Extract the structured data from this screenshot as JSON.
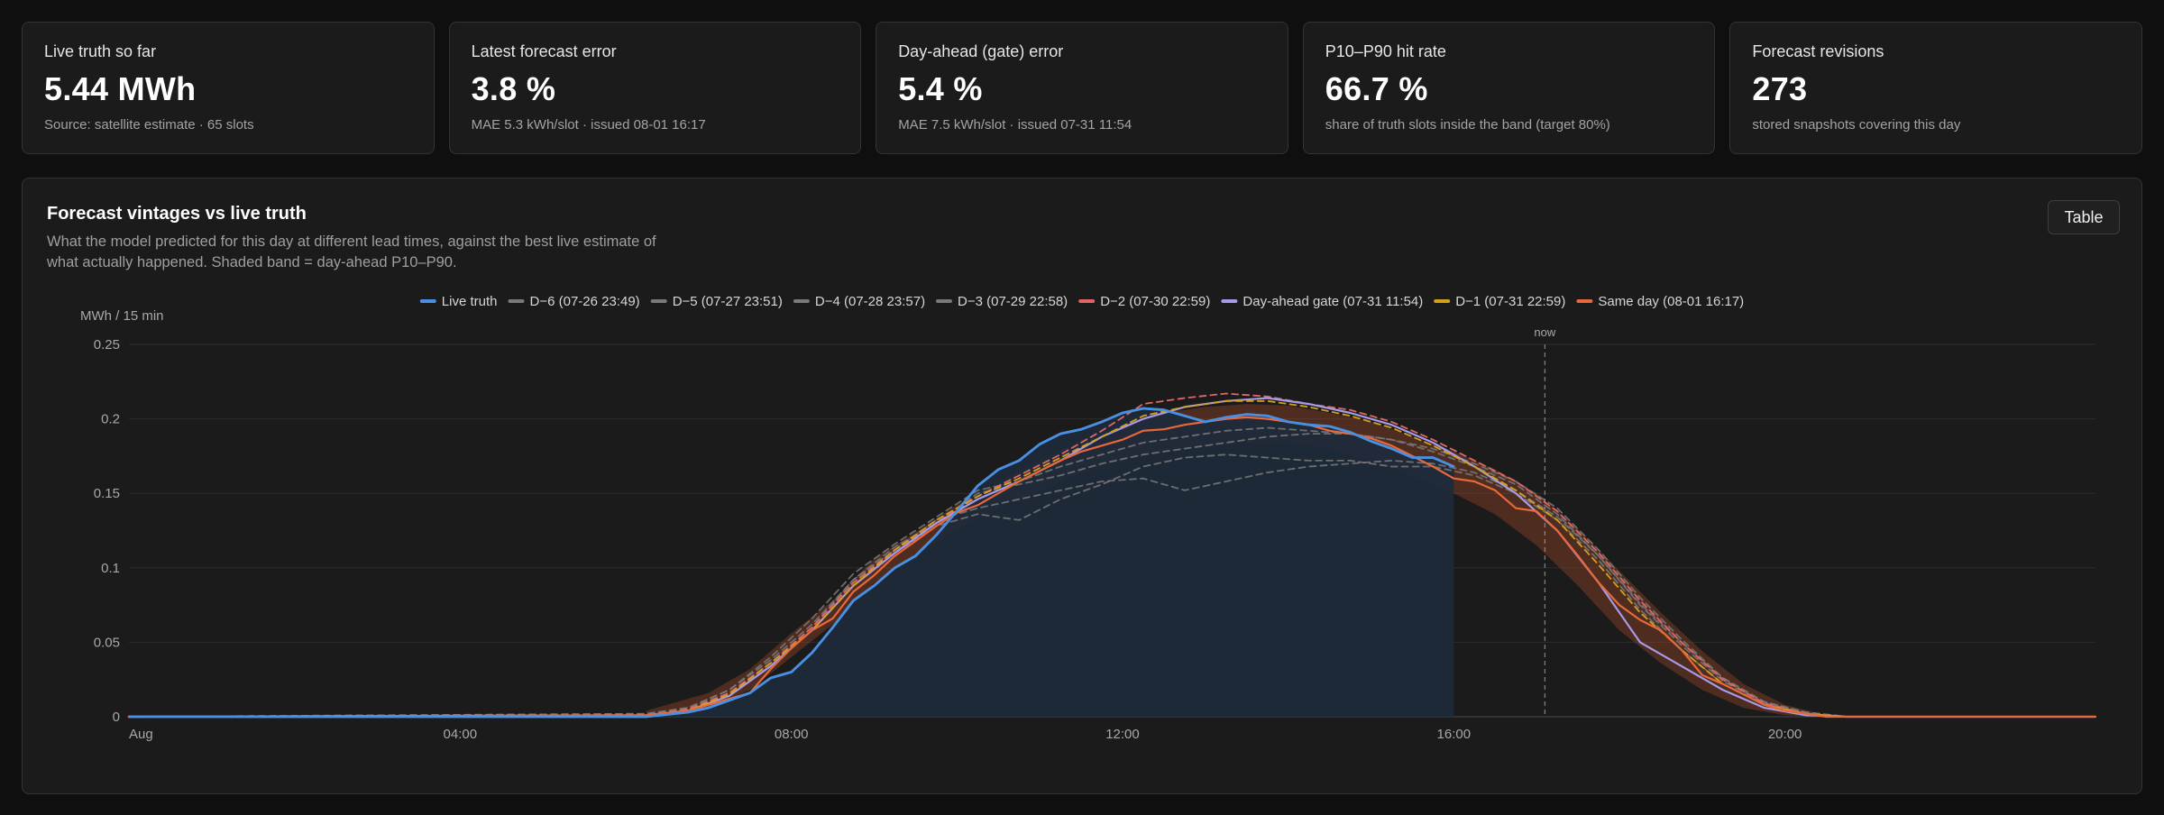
{
  "kpis": [
    {
      "label": "Live truth so far",
      "value": "5.44 MWh",
      "sub": "Source: satellite estimate · 65 slots"
    },
    {
      "label": "Latest forecast error",
      "value": "3.8 %",
      "sub": "MAE 5.3 kWh/slot · issued 08-01 16:17"
    },
    {
      "label": "Day-ahead (gate) error",
      "value": "5.4 %",
      "sub": "MAE 7.5 kWh/slot · issued 07-31 11:54"
    },
    {
      "label": "P10–P90 hit rate",
      "value": "66.7 %",
      "sub": "share of truth slots inside the band (target 80%)"
    },
    {
      "label": "Forecast revisions",
      "value": "273",
      "sub": "stored snapshots covering this day"
    }
  ],
  "panel": {
    "title": "Forecast vintages vs live truth",
    "description": "What the model predicted for this day at different lead times, against the best live estimate of what actually happened. Shaded band = day-ahead P10–P90.",
    "table_button": "Table"
  },
  "colors": {
    "truth": "#4a90e2",
    "old_vintage": "#7a7a7a",
    "d2": "#e06666",
    "gate": "#a79ae8",
    "d1": "#d4a017",
    "same_day": "#e8683a",
    "band": "#b0502a",
    "truth_fill": "#1f2a3a"
  },
  "chart_data": {
    "type": "line",
    "ylabel": "MWh / 15 min",
    "ylim": [
      0,
      0.25
    ],
    "yticks": [
      0,
      0.05,
      0.1,
      0.15,
      0.2,
      0.25
    ],
    "xlim": [
      0,
      23.75
    ],
    "xticks": [
      {
        "x": 0,
        "label": "Aug"
      },
      {
        "x": 4,
        "label": "04:00"
      },
      {
        "x": 8,
        "label": "08:00"
      },
      {
        "x": 12,
        "label": "12:00"
      },
      {
        "x": 16,
        "label": "16:00"
      },
      {
        "x": 20,
        "label": "20:00"
      }
    ],
    "now": {
      "x": 17.1,
      "label": "now"
    },
    "legend_placement": "top-center",
    "grid": true,
    "band": {
      "name": "day-ahead P10–P90",
      "x": [
        6.25,
        7,
        7.5,
        8,
        8.5,
        9,
        9.5,
        10,
        10.5,
        11,
        11.5,
        12,
        12.5,
        13,
        13.5,
        14,
        14.5,
        15,
        15.5,
        16,
        16.5,
        17,
        17.5,
        18,
        18.5,
        19,
        19.5,
        20,
        20.5
      ],
      "low": [
        0,
        0.006,
        0.018,
        0.04,
        0.062,
        0.09,
        0.108,
        0.126,
        0.14,
        0.152,
        0.164,
        0.172,
        0.178,
        0.182,
        0.184,
        0.184,
        0.18,
        0.172,
        0.162,
        0.15,
        0.136,
        0.115,
        0.088,
        0.058,
        0.036,
        0.018,
        0.006,
        0.001,
        0
      ],
      "high": [
        0.004,
        0.016,
        0.032,
        0.056,
        0.078,
        0.106,
        0.124,
        0.142,
        0.158,
        0.172,
        0.186,
        0.196,
        0.204,
        0.208,
        0.21,
        0.209,
        0.204,
        0.198,
        0.188,
        0.178,
        0.166,
        0.15,
        0.126,
        0.098,
        0.07,
        0.044,
        0.022,
        0.008,
        0.001
      ]
    },
    "series": [
      {
        "name": "Live truth",
        "color_key": "truth",
        "dashed": false,
        "fill": true,
        "x": [
          0,
          6.25,
          6.75,
          7,
          7.5,
          7.75,
          8,
          8.25,
          8.5,
          8.75,
          9,
          9.25,
          9.5,
          9.75,
          10,
          10.25,
          10.5,
          10.75,
          11,
          11.25,
          11.5,
          11.75,
          12,
          12.25,
          12.5,
          12.75,
          13,
          13.25,
          13.5,
          13.75,
          14,
          14.25,
          14.5,
          14.75,
          15,
          15.25,
          15.5,
          15.75,
          16
        ],
        "y": [
          0,
          0,
          0.003,
          0.006,
          0.016,
          0.026,
          0.03,
          0.043,
          0.06,
          0.078,
          0.088,
          0.1,
          0.108,
          0.122,
          0.138,
          0.155,
          0.166,
          0.172,
          0.183,
          0.19,
          0.193,
          0.198,
          0.204,
          0.207,
          0.206,
          0.202,
          0.198,
          0.201,
          0.203,
          0.202,
          0.198,
          0.196,
          0.195,
          0.191,
          0.185,
          0.18,
          0.174,
          0.174,
          0.168
        ]
      },
      {
        "name": "D−6 (07-26 23:49)",
        "color_key": "old_vintage",
        "dashed": true,
        "x": [
          0,
          6.25,
          6.75,
          7.25,
          7.75,
          8.25,
          8.75,
          9.25,
          9.75,
          10.25,
          10.75,
          11.25,
          11.75,
          12.25,
          12.75,
          13.25,
          13.75,
          14.25,
          14.75,
          15.25,
          15.75,
          16.25,
          16.75,
          17.25,
          17.75,
          18.25,
          18.75,
          19.25,
          19.75,
          20.25,
          20.75,
          23.75
        ],
        "y": [
          0,
          0.001,
          0.004,
          0.014,
          0.034,
          0.058,
          0.088,
          0.11,
          0.128,
          0.136,
          0.132,
          0.146,
          0.156,
          0.168,
          0.174,
          0.176,
          0.174,
          0.172,
          0.172,
          0.168,
          0.168,
          0.162,
          0.15,
          0.132,
          0.105,
          0.072,
          0.045,
          0.022,
          0.008,
          0.002,
          0,
          0
        ]
      },
      {
        "name": "D−5 (07-27 23:51)",
        "color_key": "old_vintage",
        "dashed": true,
        "x": [
          0,
          6.25,
          6.75,
          7.25,
          7.75,
          8.25,
          8.75,
          9.25,
          9.75,
          10.25,
          10.75,
          11.25,
          11.75,
          12.25,
          12.75,
          13.25,
          13.75,
          14.25,
          14.75,
          15.25,
          15.75,
          16.25,
          16.75,
          17.25,
          17.75,
          18.25,
          18.75,
          19.25,
          19.75,
          20.25,
          20.75,
          23.75
        ],
        "y": [
          0,
          0.002,
          0.006,
          0.018,
          0.038,
          0.062,
          0.092,
          0.112,
          0.132,
          0.14,
          0.146,
          0.152,
          0.158,
          0.16,
          0.152,
          0.158,
          0.164,
          0.168,
          0.17,
          0.172,
          0.17,
          0.164,
          0.152,
          0.134,
          0.108,
          0.075,
          0.048,
          0.024,
          0.009,
          0.002,
          0,
          0
        ]
      },
      {
        "name": "D−4 (07-28 23:57)",
        "color_key": "old_vintage",
        "dashed": true,
        "x": [
          0,
          6.25,
          6.75,
          7.25,
          7.75,
          8.25,
          8.75,
          9.25,
          9.75,
          10.25,
          10.75,
          11.25,
          11.75,
          12.25,
          12.75,
          13.25,
          13.75,
          14.25,
          14.75,
          15.25,
          15.75,
          16.25,
          16.75,
          17.25,
          17.75,
          18.25,
          18.75,
          19.25,
          19.75,
          20.25,
          20.75,
          23.75
        ],
        "y": [
          0,
          0.001,
          0.005,
          0.016,
          0.036,
          0.06,
          0.092,
          0.114,
          0.13,
          0.15,
          0.156,
          0.162,
          0.17,
          0.176,
          0.18,
          0.184,
          0.188,
          0.19,
          0.19,
          0.186,
          0.18,
          0.17,
          0.158,
          0.14,
          0.112,
          0.08,
          0.052,
          0.026,
          0.01,
          0.003,
          0,
          0
        ]
      },
      {
        "name": "D−3 (07-29 22:58)",
        "color_key": "old_vintage",
        "dashed": true,
        "x": [
          0,
          6.25,
          6.75,
          7.25,
          7.75,
          8.25,
          8.75,
          9.25,
          9.75,
          10.25,
          10.75,
          11.25,
          11.75,
          12.25,
          12.75,
          13.25,
          13.75,
          14.25,
          14.75,
          15.25,
          15.75,
          16.25,
          16.75,
          17.25,
          17.75,
          18.25,
          18.75,
          19.25,
          19.75,
          20.25,
          20.75,
          23.75
        ],
        "y": [
          0,
          0.002,
          0.006,
          0.018,
          0.04,
          0.066,
          0.096,
          0.116,
          0.134,
          0.152,
          0.158,
          0.168,
          0.176,
          0.184,
          0.188,
          0.192,
          0.194,
          0.192,
          0.19,
          0.186,
          0.178,
          0.168,
          0.156,
          0.136,
          0.108,
          0.076,
          0.05,
          0.026,
          0.01,
          0.003,
          0,
          0
        ]
      },
      {
        "name": "D−2 (07-30 22:59)",
        "color_key": "d2",
        "dashed": true,
        "x": [
          0,
          6.25,
          6.75,
          7.25,
          7.75,
          8.25,
          8.75,
          9.25,
          9.75,
          10.25,
          10.75,
          11.25,
          11.75,
          12.25,
          12.75,
          13.25,
          13.75,
          14.25,
          14.75,
          15.25,
          15.75,
          16.25,
          16.75,
          17.25,
          17.75,
          18.25,
          18.75,
          19.25,
          19.75,
          20.25,
          20.75,
          23.75
        ],
        "y": [
          0,
          0.001,
          0.005,
          0.016,
          0.036,
          0.06,
          0.09,
          0.112,
          0.13,
          0.148,
          0.162,
          0.176,
          0.192,
          0.21,
          0.214,
          0.217,
          0.215,
          0.21,
          0.206,
          0.198,
          0.186,
          0.172,
          0.158,
          0.138,
          0.11,
          0.078,
          0.05,
          0.025,
          0.009,
          0.002,
          0,
          0
        ]
      },
      {
        "name": "Day-ahead gate (07-31 11:54)",
        "color_key": "gate",
        "dashed": false,
        "x": [
          0,
          6.25,
          6.75,
          7.25,
          7.75,
          8.25,
          8.75,
          9.25,
          9.75,
          10.25,
          10.75,
          11.25,
          11.75,
          12.25,
          12.75,
          13.25,
          13.75,
          14.25,
          14.75,
          15.25,
          15.75,
          16.25,
          16.75,
          17.25,
          17.75,
          18.25,
          18.75,
          19.25,
          19.75,
          20.25,
          20.75,
          23.75
        ],
        "y": [
          0,
          0.001,
          0.004,
          0.014,
          0.034,
          0.058,
          0.088,
          0.11,
          0.13,
          0.146,
          0.158,
          0.172,
          0.188,
          0.2,
          0.208,
          0.212,
          0.214,
          0.21,
          0.204,
          0.196,
          0.184,
          0.168,
          0.15,
          0.125,
          0.09,
          0.05,
          0.034,
          0.018,
          0.006,
          0.001,
          0,
          0
        ]
      },
      {
        "name": "D−1 (07-31 22:59)",
        "color_key": "d1",
        "dashed": true,
        "x": [
          0,
          6.25,
          6.75,
          7.25,
          7.75,
          8.25,
          8.75,
          9.25,
          9.75,
          10.25,
          10.75,
          11.25,
          11.75,
          12.25,
          12.75,
          13.25,
          13.75,
          14.25,
          14.75,
          15.25,
          15.75,
          16.25,
          16.75,
          17.25,
          17.75,
          18.25,
          18.75,
          19.25,
          19.75,
          20.25,
          20.75,
          23.75
        ],
        "y": [
          0,
          0.001,
          0.004,
          0.015,
          0.036,
          0.058,
          0.088,
          0.112,
          0.132,
          0.148,
          0.16,
          0.174,
          0.188,
          0.202,
          0.208,
          0.212,
          0.212,
          0.208,
          0.202,
          0.194,
          0.182,
          0.168,
          0.152,
          0.132,
          0.102,
          0.07,
          0.045,
          0.022,
          0.008,
          0.002,
          0,
          0
        ]
      },
      {
        "name": "Same day (08-01 16:17)",
        "color_key": "same_day",
        "dashed": false,
        "x": [
          0,
          6.25,
          6.75,
          7.25,
          7.5,
          7.75,
          8,
          8.25,
          8.5,
          8.75,
          9,
          9.25,
          9.5,
          9.75,
          10,
          10.25,
          10.5,
          10.75,
          11,
          11.25,
          11.5,
          11.75,
          12,
          12.25,
          12.5,
          12.75,
          13,
          13.25,
          13.5,
          13.75,
          14,
          14.25,
          14.5,
          14.75,
          15,
          15.25,
          15.5,
          15.75,
          16,
          16.25,
          16.5,
          16.75,
          17,
          17.25,
          17.5,
          17.75,
          18,
          18.25,
          18.5,
          18.75,
          19,
          19.25,
          19.5,
          19.75,
          20,
          20.25,
          20.5,
          23.75
        ],
        "y": [
          0,
          0.001,
          0.004,
          0.012,
          0.016,
          0.032,
          0.046,
          0.058,
          0.066,
          0.084,
          0.095,
          0.108,
          0.118,
          0.128,
          0.137,
          0.142,
          0.15,
          0.158,
          0.165,
          0.172,
          0.178,
          0.182,
          0.186,
          0.192,
          0.193,
          0.196,
          0.198,
          0.2,
          0.201,
          0.2,
          0.198,
          0.196,
          0.192,
          0.19,
          0.187,
          0.182,
          0.175,
          0.168,
          0.16,
          0.158,
          0.152,
          0.14,
          0.138,
          0.125,
          0.108,
          0.09,
          0.075,
          0.065,
          0.058,
          0.045,
          0.028,
          0.022,
          0.015,
          0.008,
          0.004,
          0.002,
          0,
          0
        ]
      }
    ]
  }
}
